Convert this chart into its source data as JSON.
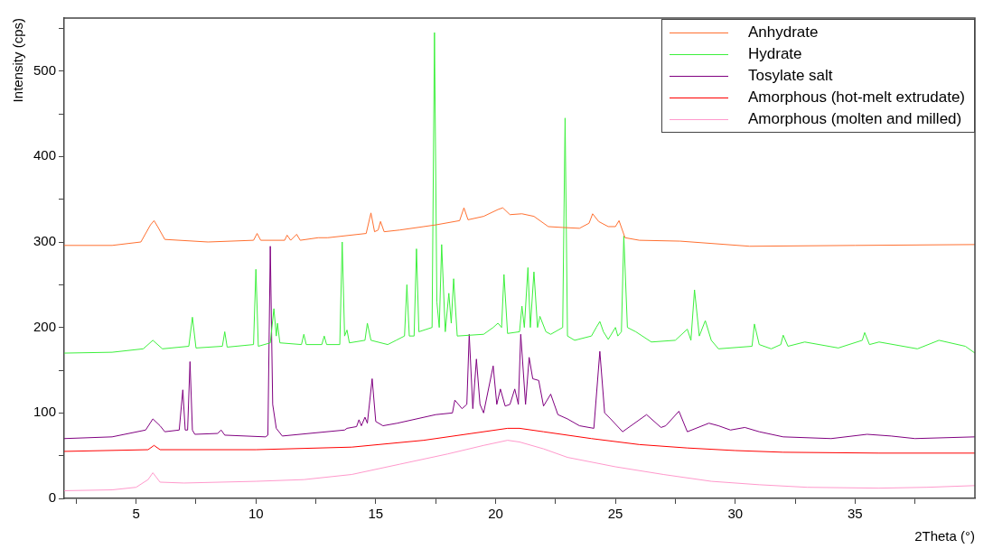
{
  "chart_data": {
    "type": "line",
    "xlabel": "2Theta (°)",
    "ylabel": "Intensity (cps)",
    "xlim": [
      2,
      40
    ],
    "ylim": [
      0,
      562
    ],
    "xticks": [
      {
        "value": 2.5,
        "label": null
      },
      5,
      {
        "value": 7.5,
        "label": null
      },
      10,
      {
        "value": 12.5,
        "label": null
      },
      15,
      {
        "value": 17.5,
        "label": null
      },
      20,
      {
        "value": 22.5,
        "label": null
      },
      25,
      {
        "value": 27.5,
        "label": null
      },
      30,
      {
        "value": 32.5,
        "label": null
      },
      35,
      {
        "value": 37.5,
        "label": null
      }
    ],
    "yticks": [
      0,
      {
        "value": 50,
        "label": null
      },
      100,
      {
        "value": 150,
        "label": null
      },
      200,
      {
        "value": 250,
        "label": null
      },
      300,
      {
        "value": 350,
        "label": null
      },
      400,
      {
        "value": 450,
        "label": null
      },
      500,
      {
        "value": 550,
        "label": null
      }
    ],
    "grid": false,
    "legend": "top right",
    "marker": "none",
    "line_style": "solid",
    "series": [
      {
        "name": "Anhydrate",
        "color": "#ff7030",
        "x": [
          2,
          4,
          5.2,
          5.6,
          5.75,
          5.9,
          6.2,
          8,
          9.9,
          10.05,
          10.2,
          11.2,
          11.3,
          11.45,
          11.7,
          11.85,
          12.6,
          13,
          14.6,
          14.8,
          14.95,
          15.1,
          15.2,
          15.35,
          16,
          17,
          17.5,
          18.5,
          18.68,
          18.85,
          19.5,
          20.1,
          20.3,
          20.6,
          21.1,
          21.6,
          22.2,
          22.8,
          23.5,
          23.9,
          24.05,
          24.3,
          24.7,
          25,
          25.15,
          25.4,
          26,
          27.7,
          30.6,
          35,
          40
        ],
        "values": [
          296,
          296,
          300,
          320,
          325,
          318,
          303,
          300,
          302,
          310,
          302,
          302,
          308,
          302,
          309,
          302,
          305,
          305,
          310,
          334,
          312,
          314,
          324,
          312,
          314,
          318,
          320,
          325,
          340,
          326,
          330,
          338,
          340,
          332,
          333,
          330,
          318,
          317,
          316,
          322,
          333,
          324,
          318,
          318,
          325,
          305,
          302,
          301,
          295,
          296,
          297
        ]
      },
      {
        "name": "Hydrate",
        "color": "#3cf03c",
        "x": [
          2,
          4,
          5.3,
          5.7,
          6.1,
          7.2,
          7.35,
          7.5,
          8.6,
          8.7,
          8.8,
          9.9,
          10,
          10.1,
          10.6,
          10.75,
          10.85,
          10.9,
          11,
          11.9,
          12,
          12.1,
          12.75,
          12.85,
          12.95,
          13.5,
          13.6,
          13.7,
          13.8,
          13.9,
          14.55,
          14.65,
          14.8,
          15.5,
          15.85,
          16.2,
          16.3,
          16.4,
          16.6,
          16.7,
          16.8,
          17.35,
          17.45,
          17.55,
          17.65,
          17.75,
          17.9,
          18.05,
          18.15,
          18.25,
          18.4,
          19.5,
          19.9,
          20.1,
          20.25,
          20.35,
          20.5,
          21,
          21.1,
          21.2,
          21.35,
          21.45,
          21.6,
          21.75,
          21.85,
          22.1,
          22.3,
          22.8,
          22.9,
          23,
          23.3,
          24,
          24.2,
          24.35,
          24.5,
          24.7,
          25,
          25.1,
          25.25,
          25.35,
          25.5,
          25.85,
          26.5,
          27.5,
          28,
          28.15,
          28.3,
          28.5,
          28.75,
          29,
          29.3,
          30.7,
          30.8,
          31,
          31.5,
          31.9,
          32,
          32.2,
          32.9,
          34.3,
          35.3,
          35.4,
          35.6,
          36,
          37.6,
          38.5,
          39.6,
          40
        ],
        "values": [
          170,
          171,
          175,
          185,
          175,
          178,
          212,
          176,
          178,
          195,
          177,
          180,
          268,
          178,
          182,
          222,
          190,
          205,
          182,
          180,
          192,
          180,
          180,
          190,
          180,
          180,
          300,
          190,
          197,
          182,
          185,
          205,
          185,
          180,
          185,
          190,
          250,
          190,
          190,
          292,
          195,
          200,
          545,
          230,
          200,
          297,
          195,
          240,
          205,
          257,
          190,
          192,
          200,
          205,
          200,
          262,
          193,
          195,
          225,
          200,
          270,
          200,
          265,
          200,
          213,
          195,
          192,
          200,
          445,
          190,
          185,
          190,
          200,
          207,
          195,
          186,
          200,
          190,
          195,
          307,
          200,
          195,
          183,
          185,
          198,
          185,
          244,
          190,
          208,
          185,
          175,
          178,
          204,
          180,
          175,
          180,
          191,
          178,
          183,
          176,
          185,
          194,
          180,
          183,
          175,
          185,
          178,
          170
        ]
      },
      {
        "name": "Tosylate salt",
        "color": "#800080",
        "x": [
          2,
          4,
          5.4,
          5.7,
          6.0,
          6.2,
          6.8,
          6.95,
          7.05,
          7.15,
          7.25,
          7.35,
          7.45,
          8.4,
          8.55,
          8.7,
          10.4,
          10.5,
          10.6,
          10.7,
          10.85,
          11.1,
          13.7,
          13.8,
          14.2,
          14.3,
          14.4,
          14.55,
          14.65,
          14.85,
          15,
          15.3,
          15.9,
          17.5,
          18.2,
          18.3,
          18.6,
          18.8,
          18.9,
          19.05,
          19.2,
          19.35,
          19.5,
          19.9,
          20.05,
          20.2,
          20.4,
          20.6,
          20.8,
          20.95,
          21.05,
          21.25,
          21.4,
          21.55,
          21.8,
          22,
          22.3,
          22.6,
          23,
          23.5,
          24.1,
          24.35,
          24.55,
          24.8,
          25.3,
          25.9,
          26.3,
          26.9,
          27.1,
          27.65,
          28,
          28.9,
          29.3,
          29.8,
          30.4,
          31,
          32,
          34,
          35.5,
          36.5,
          37.5,
          40
        ],
        "values": [
          70,
          72,
          80,
          93,
          85,
          78,
          80,
          127,
          80,
          80,
          160,
          80,
          75,
          76,
          80,
          74,
          72,
          74,
          295,
          110,
          82,
          73,
          80,
          82,
          84,
          92,
          85,
          95,
          88,
          140,
          90,
          85,
          88,
          98,
          100,
          115,
          105,
          110,
          192,
          105,
          163,
          110,
          100,
          155,
          110,
          128,
          108,
          110,
          128,
          110,
          192,
          110,
          165,
          140,
          138,
          108,
          122,
          98,
          93,
          85,
          82,
          172,
          100,
          93,
          78,
          90,
          98,
          83,
          85,
          102,
          78,
          88,
          85,
          80,
          83,
          78,
          72,
          70,
          75,
          73,
          70,
          72
        ]
      },
      {
        "name": "Amorphous (hot-melt extrudate)",
        "color": "#ff0000",
        "x": [
          2,
          5.5,
          5.75,
          6,
          10,
          14,
          17,
          19,
          20.5,
          21,
          22,
          24,
          26,
          28,
          30,
          32,
          36,
          40
        ],
        "values": [
          55,
          57,
          62,
          57,
          57,
          60,
          68,
          76,
          82,
          82,
          78,
          70,
          63,
          59,
          56,
          54,
          53,
          53
        ]
      },
      {
        "name": "Amorphous (molten and milled)",
        "color": "#ff99cc",
        "x": [
          2,
          4,
          5,
          5.5,
          5.7,
          6,
          7,
          10,
          12,
          14,
          16,
          18,
          19.5,
          20.5,
          21,
          22,
          23,
          25,
          27,
          29,
          31,
          33,
          36,
          38,
          40
        ],
        "values": [
          9,
          10,
          13,
          22,
          30,
          19,
          18,
          20,
          22,
          28,
          40,
          52,
          62,
          68,
          66,
          58,
          48,
          37,
          28,
          20,
          16,
          13,
          12,
          13,
          15
        ]
      }
    ]
  }
}
